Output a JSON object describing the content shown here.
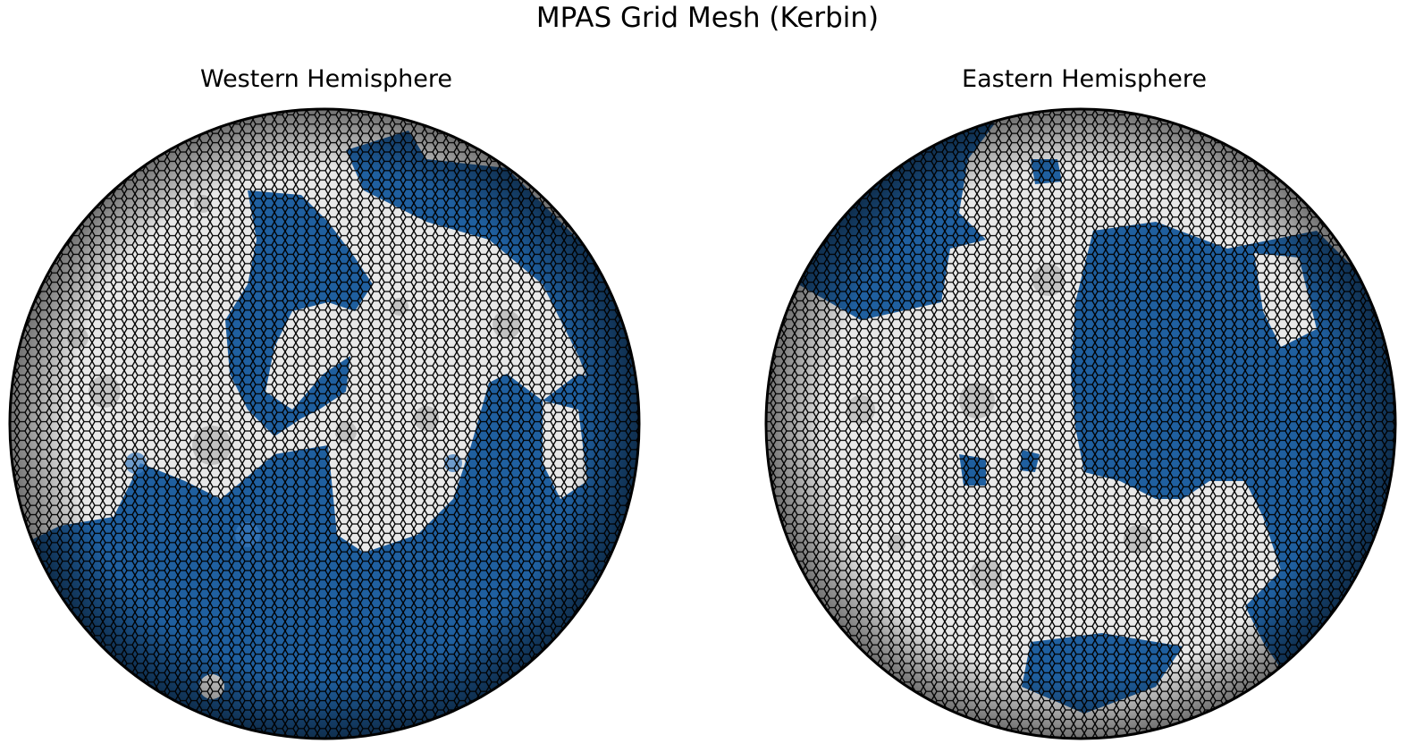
{
  "figure": {
    "title": "MPAS Grid Mesh (Kerbin)"
  },
  "panels": [
    {
      "title": "Western Hemisphere"
    },
    {
      "title": "Eastern Hemisphere"
    }
  ],
  "colors": {
    "ocean": "#1f5f9f",
    "ocean_light": "#3a7bbf",
    "land": "#e8e8e8",
    "land_dark": "#9a9a9a",
    "mesh_line": "#000000"
  }
}
